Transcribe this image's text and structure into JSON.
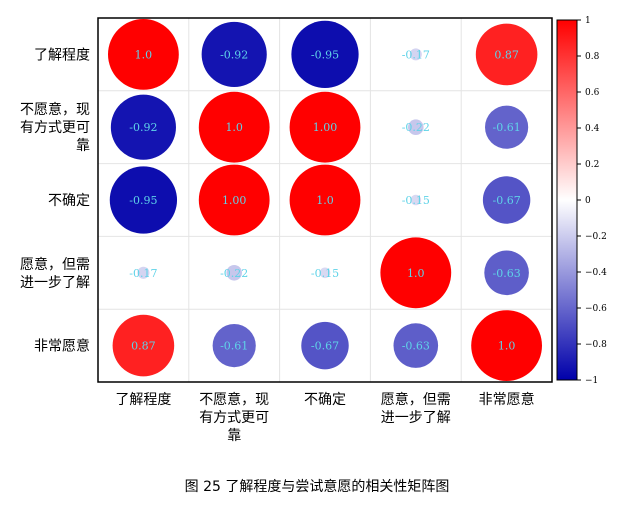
{
  "chart_data": {
    "type": "heatmap",
    "style": "circle-correlation-matrix",
    "row_labels": [
      [
        "了解程度"
      ],
      [
        "不愿意，现",
        "有方式更可",
        "靠"
      ],
      [
        "不确定"
      ],
      [
        "愿意，但需",
        "进一步了解"
      ],
      [
        "非常愿意"
      ]
    ],
    "col_labels": [
      [
        "了解程度"
      ],
      [
        "不愿意，现",
        "有方式更可",
        "靠"
      ],
      [
        "不确定"
      ],
      [
        "愿意，但需",
        "进一步了解"
      ],
      [
        "非常愿意"
      ]
    ],
    "values": [
      [
        1.0,
        -0.92,
        -0.95,
        -0.17,
        0.87
      ],
      [
        -0.92,
        1.0,
        1.0,
        -0.22,
        -0.61
      ],
      [
        -0.95,
        1.0,
        1.0,
        -0.15,
        -0.67
      ],
      [
        -0.17,
        -0.22,
        -0.15,
        1.0,
        -0.63
      ],
      [
        0.87,
        -0.61,
        -0.67,
        -0.63,
        1.0
      ]
    ],
    "value_labels": [
      [
        "1.0",
        "-0.92",
        "-0.95",
        "-0.17",
        "0.87"
      ],
      [
        "-0.92",
        "1.0",
        "1.00",
        "-0.22",
        "-0.61"
      ],
      [
        "-0.95",
        "1.00",
        "1.0",
        "-0.15",
        "-0.67"
      ],
      [
        "-0.17",
        "-0.22",
        "-0.15",
        "1.0",
        "-0.63"
      ],
      [
        "0.87",
        "-0.61",
        "-0.67",
        "-0.63",
        "1.0"
      ]
    ],
    "colorbar": {
      "range": [
        -1,
        1
      ],
      "ticks": [
        "1",
        "0.8",
        "0.6",
        "0.4",
        "0.2",
        "0",
        "−0.2",
        "−0.4",
        "−0.6",
        "−0.8",
        "−1"
      ],
      "tick_values": [
        1,
        0.8,
        0.6,
        0.4,
        0.2,
        0,
        -0.2,
        -0.4,
        -0.6,
        -0.8,
        -1
      ],
      "colormap": "bwr",
      "color_low": "#0000aa",
      "color_mid": "#ffffff",
      "color_high": "#ff0000"
    },
    "label_color": "#5fd3e8",
    "grid": true,
    "caption": "图 25 了解程度与尝试意愿的相关性矩阵图"
  }
}
